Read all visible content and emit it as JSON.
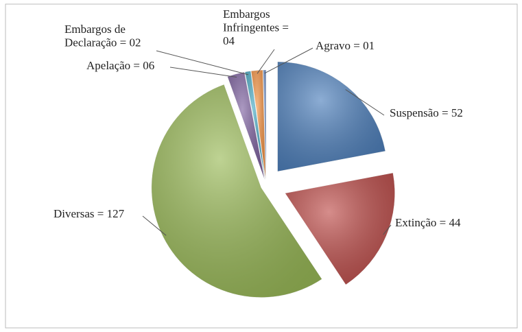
{
  "chart_data": {
    "type": "pie",
    "values": [
      52,
      44,
      127,
      6,
      2,
      4,
      1
    ],
    "value_labels": [
      "Suspensão = 52",
      "Extinção = 44",
      "Diversas = 127",
      "Apelação = 06",
      "Embargos de\nDeclaração = 02",
      "Embargos\nInfringentes =\n04",
      "Agravo = 01"
    ],
    "colors": [
      "#4f81bd",
      "#c0504d",
      "#9bbb59",
      "#8064a2",
      "#4bacc6",
      "#f79646",
      "#6f8fc7"
    ]
  }
}
